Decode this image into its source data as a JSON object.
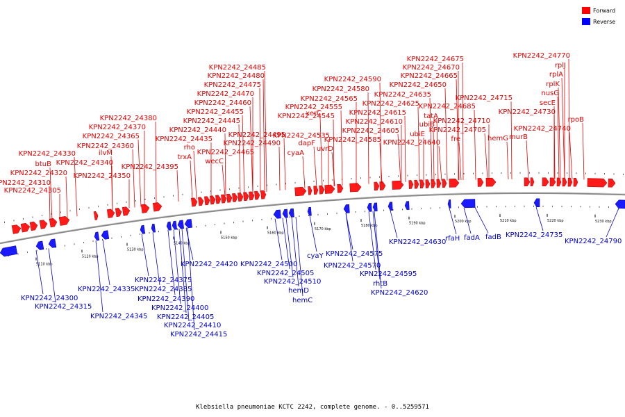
{
  "legend": {
    "forward_label": "Forward",
    "reverse_label": "Reverse",
    "forward_color": "#ff0000",
    "reverse_color": "#0000ff"
  },
  "caption": "Klebsiella pneumoniae KCTC 2242, complete genome. - 0..5259571",
  "colors": {
    "forward_fill": "#ff1a1a",
    "forward_text": "#e00000",
    "reverse_fill": "#1a1aff",
    "reverse_text": "#0000cc",
    "backbone": "#777777"
  },
  "ticks": [
    {
      "label": "5110 kbp"
    },
    {
      "label": "5120 kbp"
    },
    {
      "label": "5130 kbp"
    },
    {
      "label": "5140 kbp"
    },
    {
      "label": "5150 kbp"
    },
    {
      "label": "5160 kbp"
    },
    {
      "label": "5170 kbp"
    },
    {
      "label": "5180 kbp"
    },
    {
      "label": "5190 kbp"
    },
    {
      "label": "5200 kbp"
    },
    {
      "label": "5210 kbp"
    },
    {
      "label": "5220 kbp"
    },
    {
      "label": "5230 kbp"
    }
  ],
  "forward_labels": [
    "KPN2242_24305",
    "KPN2242_24310",
    "KPN2242_24320",
    "btuB",
    "KPN2242_24330",
    "KPN2242_24350",
    "KPN2242_24340",
    "ilvM",
    "KPN2242_24360",
    "KPN2242_24365",
    "KPN2242_24370",
    "KPN2242_24380",
    "KPN2242_24395",
    "trxA",
    "rho",
    "KPN2242_24435",
    "KPN2242_24440",
    "KPN2242_24445",
    "KPN2242_24455",
    "KPN2242_24460",
    "KPN2242_24470",
    "KPN2242_24475",
    "KPN2242_24480",
    "KPN2242_24485",
    "wecC",
    "KPN2242_24465",
    "KPN2242_24490",
    "KPN2242_24495",
    "cyaA",
    "dapF",
    "KPN2242_24535",
    "KPN2242_24545",
    "KPN2242_24555",
    "xerC",
    "uvrD",
    "KPN2242_24565",
    "KPN2242_24580",
    "KPN2242_24590",
    "KPN2242_24585",
    "KPN2242_24605",
    "KPN2242_24610",
    "KPN2242_24615",
    "KPN2242_24625",
    "KPN2242_24635",
    "KPN2242_24640",
    "ubiE",
    "ubiB",
    "tatA",
    "KPN2242_24650",
    "KPN2242_24665",
    "KPN2242_24670",
    "KPN2242_24675",
    "KPN2242_24685",
    "fre",
    "KPN2242_24705",
    "KPN2242_24710",
    "KPN2242_24715",
    "hemG",
    "murB",
    "KPN2242_24740",
    "KPN2242_24730",
    "secE",
    "nusG",
    "rplK",
    "rplA",
    "rplJ",
    "KPN2242_24770",
    "rpoB"
  ],
  "reverse_labels": [
    "KPN2242_24300",
    "KPN2242_24315",
    "KPN2242_24335",
    "KPN2242_24345",
    "KPN2242_24375",
    "KPN2242_24385",
    "KPN2242_24390",
    "KPN2242_24400",
    "KPN2242_24405",
    "KPN2242_24410",
    "KPN2242_24415",
    "KPN2242_24420",
    "KPN2242_24500",
    "KPN2242_24505",
    "KPN2242_24510",
    "hemD",
    "hemC",
    "cyaY",
    "KPN2242_24575",
    "KPN2242_24570",
    "KPN2242_24595",
    "rhtB",
    "KPN2242_24620",
    "KPN2242_24630",
    "rfaH",
    "fadA",
    "fadB",
    "KPN2242_24735",
    "KPN2242_24790"
  ]
}
